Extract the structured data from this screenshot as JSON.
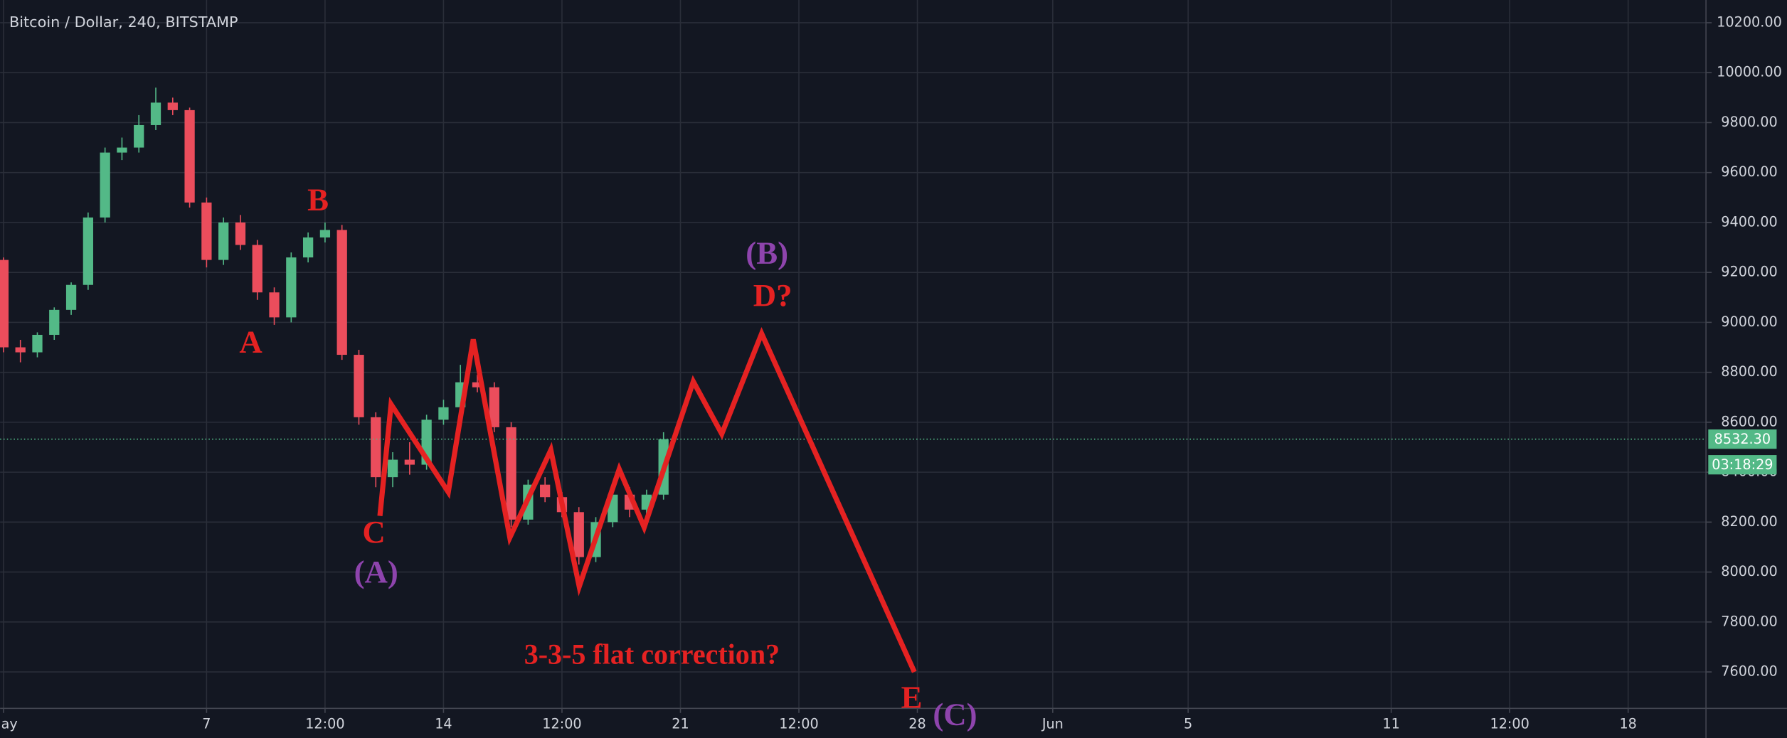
{
  "chart_data": {
    "type": "candlestick",
    "title": "Bitcoin / Dollar, 240, BITSTAMP",
    "x": [
      1.0,
      1.5,
      2.0,
      2.5,
      3.0,
      3.5,
      4.0,
      4.5,
      5.0,
      5.5,
      6.0,
      6.5,
      7.0,
      7.5,
      8.0,
      8.5,
      9.0,
      9.5,
      10.0,
      10.5,
      11.0,
      11.5,
      12.0,
      12.5,
      13.0,
      13.5,
      14.0,
      14.5,
      15.0,
      15.5,
      16.0,
      16.5,
      17.0,
      17.5,
      18.0,
      18.5,
      19.0,
      19.5,
      20.0,
      20.5
    ],
    "open": [
      9250,
      8900,
      8880,
      8950,
      9050,
      9150,
      9420,
      9680,
      9700,
      9790,
      9880,
      9850,
      9480,
      9250,
      9400,
      9310,
      9120,
      9020,
      9260,
      9340,
      9370,
      8870,
      8620,
      8380,
      8450,
      8430,
      8610,
      8660,
      8760,
      8740,
      8580,
      8210,
      8350,
      8300,
      8240,
      8060,
      8200,
      8310,
      8250,
      8310
    ],
    "high": [
      9260,
      8930,
      8960,
      9060,
      9160,
      9440,
      9700,
      9740,
      9830,
      9940,
      9900,
      9860,
      9500,
      9420,
      9430,
      9330,
      9140,
      9280,
      9360,
      9400,
      9390,
      8890,
      8640,
      8480,
      8520,
      8630,
      8690,
      8830,
      8790,
      8760,
      8600,
      8370,
      8380,
      8320,
      8260,
      8220,
      8330,
      8340,
      8330,
      8560
    ],
    "low": [
      8880,
      8840,
      8860,
      8930,
      9030,
      9130,
      9400,
      9650,
      9680,
      9770,
      9830,
      9460,
      9220,
      9230,
      9290,
      9090,
      8990,
      9000,
      9240,
      9320,
      8850,
      8590,
      8340,
      8340,
      8390,
      8410,
      8590,
      8640,
      8720,
      8560,
      8180,
      8190,
      8280,
      8220,
      8030,
      8040,
      8180,
      8220,
      8230,
      8290
    ],
    "close": [
      8900,
      8880,
      8950,
      9050,
      9150,
      9420,
      9680,
      9700,
      9790,
      9880,
      9850,
      9480,
      9250,
      9400,
      9310,
      9120,
      9020,
      9260,
      9340,
      9370,
      8870,
      8620,
      8380,
      8450,
      8430,
      8610,
      8660,
      8760,
      8740,
      8580,
      8210,
      8350,
      8300,
      8240,
      8060,
      8200,
      8310,
      8250,
      8310,
      8532.3
    ],
    "up_color": "#53b987",
    "down_color": "#eb4d5c",
    "xlim": [
      0.9,
      51.3
    ],
    "xticks": [
      {
        "value": 1,
        "label": "May"
      },
      7,
      {
        "value": 10.5,
        "label": "12:00"
      },
      14,
      {
        "value": 17.5,
        "label": "12:00"
      },
      21,
      {
        "value": 24.5,
        "label": "12:00"
      },
      28,
      {
        "value": 32,
        "label": "Jun"
      },
      {
        "value": 36,
        "label": "5"
      },
      {
        "value": 42,
        "label": "11"
      },
      {
        "value": 45.5,
        "label": "12:00"
      },
      {
        "value": 49,
        "label": "18"
      }
    ],
    "ylim": [
      7454,
      10291
    ],
    "yticks": [
      {
        "value": 7600,
        "label": "7600.00"
      },
      {
        "value": 7800,
        "label": "7800.00"
      },
      {
        "value": 8000,
        "label": "8000.00"
      },
      {
        "value": 8200,
        "label": "8200.00"
      },
      {
        "value": 8400,
        "label": "8400.00"
      },
      {
        "value": 8600,
        "label": "8600.00"
      },
      {
        "value": 8800,
        "label": "8800.00"
      },
      {
        "value": 9000,
        "label": "9000.00"
      },
      {
        "value": 9200,
        "label": "9200.00"
      },
      {
        "value": 9400,
        "label": "9400.00"
      },
      {
        "value": 9600,
        "label": "9600.00"
      },
      {
        "value": 9800,
        "label": "9800.00"
      },
      {
        "value": 10000,
        "label": "10000.00"
      },
      {
        "value": 10200,
        "label": "10200.00"
      }
    ],
    "grid": true,
    "last_price": {
      "value": 8532.3,
      "label": "8532.30"
    },
    "countdown": "03:18:29",
    "wave": {
      "x": [
        12.12,
        12.45,
        14.14,
        14.88,
        15.96,
        17.17,
        18.01,
        19.19,
        19.93,
        21.38,
        22.22,
        23.4,
        27.91
      ],
      "values": [
        8225,
        8672,
        8320,
        8932,
        8138,
        8489,
        7942,
        8412,
        8179,
        8763,
        8553,
        8955,
        7600
      ],
      "color": "#e52222"
    },
    "annotations": [
      {
        "text": "B",
        "color": "#e52222"
      },
      {
        "text": "A",
        "color": "#e52222"
      },
      {
        "text": "C",
        "color": "#e52222"
      },
      {
        "text": "(A)",
        "color": "#8e44ad"
      },
      {
        "text": "(B)",
        "color": "#8e44ad"
      },
      {
        "text": "D?",
        "color": "#e52222"
      },
      {
        "text": "3-3-5 flat correction?",
        "color": "#e52222"
      },
      {
        "text": "E",
        "color": "#e52222"
      },
      {
        "text": "(C)",
        "color": "#8e44ad"
      }
    ]
  }
}
